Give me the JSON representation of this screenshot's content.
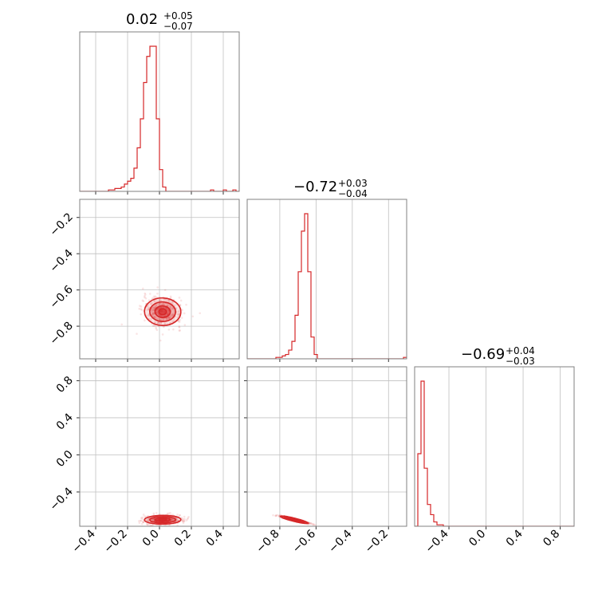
{
  "chart_data": {
    "type": "corner",
    "color": "#d62728",
    "grid": true,
    "parameters": [
      {
        "median": "0.02",
        "plus": "+0.05",
        "minus": "−0.07",
        "range": [
          -0.5,
          0.5
        ],
        "ticks": [
          -0.4,
          -0.2,
          0.0,
          0.2,
          0.4
        ],
        "tick_labels": [
          "−0.4",
          "−0.2",
          "0.0",
          "0.2",
          "0.4"
        ]
      },
      {
        "median": "−0.72",
        "plus": "+0.03",
        "minus": "−0.04",
        "range": [
          -0.98,
          -0.1
        ],
        "ticks": [
          -0.8,
          -0.6,
          -0.4,
          -0.2
        ],
        "tick_labels": [
          "−0.8",
          "−0.6",
          "−0.4",
          "−0.2"
        ]
      },
      {
        "median": "−0.69",
        "plus": "+0.04",
        "minus": "−0.03",
        "range": [
          -0.77,
          0.95
        ],
        "ticks": [
          -0.4,
          0.0,
          0.4,
          0.8
        ],
        "tick_labels": [
          "−0.4",
          "0.0",
          "0.4",
          "0.8"
        ]
      }
    ],
    "hist1d": [
      {
        "edges_start": -0.5,
        "bin_width": 0.02,
        "counts": [
          0,
          0,
          0,
          0,
          0,
          0,
          0,
          0,
          0,
          1,
          1,
          2,
          2,
          3,
          5,
          7,
          9,
          16,
          30,
          50,
          75,
          93,
          100,
          100,
          50,
          15,
          3,
          0,
          0,
          0,
          0,
          0,
          0,
          0,
          0,
          0,
          0,
          0,
          0,
          0,
          0,
          1,
          0,
          0,
          0,
          1,
          0,
          0,
          1,
          0
        ]
      },
      {
        "edges_start": -0.98,
        "bin_width": 0.0176,
        "counts": [
          0,
          0,
          0,
          0,
          0,
          0,
          0,
          0,
          0,
          1,
          1,
          2,
          3,
          6,
          12,
          30,
          60,
          88,
          100,
          60,
          15,
          3,
          0,
          0,
          0,
          0,
          0,
          0,
          0,
          0,
          0,
          0,
          0,
          0,
          0,
          0,
          0,
          0,
          0,
          0,
          0,
          0,
          0,
          0,
          0,
          0,
          0,
          0,
          0,
          1
        ]
      },
      {
        "edges_start": -0.77,
        "bin_width": 0.0344,
        "counts": [
          0,
          50,
          100,
          40,
          15,
          8,
          3,
          1,
          1,
          0,
          0,
          0,
          0,
          0,
          0,
          0,
          0,
          0,
          0,
          0,
          0,
          0,
          0,
          0,
          0,
          0,
          0,
          0,
          0,
          0,
          0,
          0,
          0,
          0,
          0,
          0,
          0,
          0,
          0,
          0,
          0,
          0,
          0,
          0,
          0,
          0,
          0,
          0,
          0,
          0
        ]
      }
    ],
    "hist2d": [
      {
        "x_param": 0,
        "y_param": 1,
        "center": [
          0.02,
          -0.72
        ],
        "spread": [
          0.06,
          0.04
        ],
        "corr": -0.15
      },
      {
        "x_param": 0,
        "y_param": 2,
        "center": [
          0.02,
          -0.7
        ],
        "spread": [
          0.06,
          0.025
        ],
        "corr": 0.1
      },
      {
        "x_param": 1,
        "y_param": 2,
        "center": [
          -0.72,
          -0.7
        ],
        "spread": [
          0.04,
          0.02
        ],
        "corr": -0.95
      }
    ]
  }
}
